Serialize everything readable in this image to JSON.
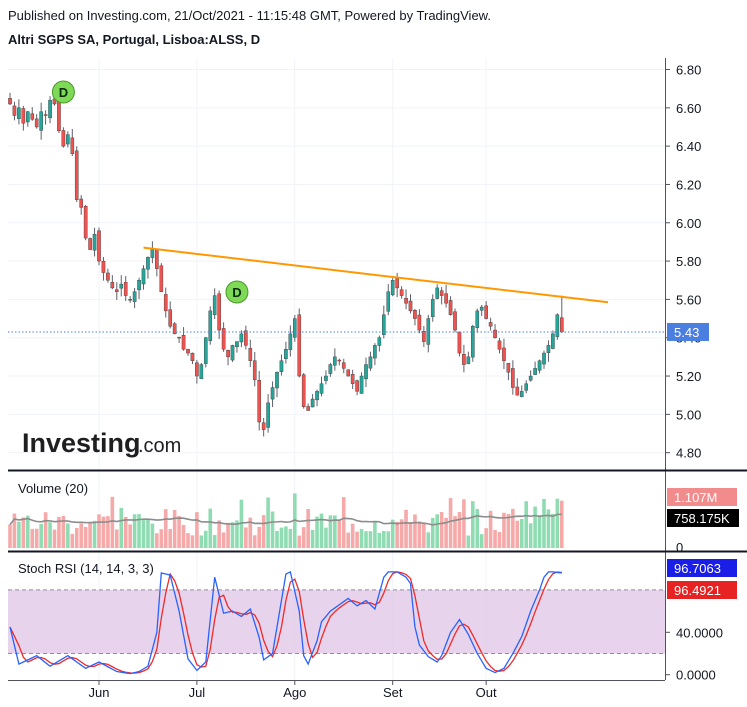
{
  "header": {
    "published": "Published on Investing.com, 21/Oct/2021 - 11:15:48 GMT, Powered by TradingView.",
    "title": "Altri SGPS SA, Portugal, Lisboa:ALSS, D"
  },
  "logo": {
    "text_bold": "Investing",
    "text_light": ".com"
  },
  "colors": {
    "up": "#26a69a",
    "down": "#ef5350",
    "vol_up": "#8fdcb3",
    "vol_down": "#f5a9a9",
    "trend": "#ff9800",
    "price_marker": "#4a7fe0",
    "k_line": "#2962ff",
    "d_line": "#ef2a2a",
    "rsi_band": "#e1c8e6",
    "div_badge": "#7ed957"
  },
  "chart_data": [
    {
      "type": "candlestick",
      "title": "Altri SGPS SA, Portugal, Lisboa:ALSS, D",
      "x_labels": [
        "Jun",
        "Jul",
        "Ago",
        "Set",
        "Out"
      ],
      "y_ticks": [
        "6.80",
        "6.60",
        "6.40",
        "6.20",
        "6.00",
        "5.80",
        "5.60",
        "5.40",
        "5.20",
        "5.00",
        "4.80"
      ],
      "ylim": [
        4.72,
        6.86
      ],
      "last_price_label": "5.43",
      "last_price": 5.43,
      "dividend_label": "D",
      "close": [
        6.62,
        6.56,
        6.6,
        6.52,
        6.58,
        6.54,
        6.5,
        6.58,
        6.56,
        6.64,
        6.62,
        6.48,
        6.4,
        6.46,
        6.36,
        6.12,
        6.08,
        5.92,
        5.86,
        5.94,
        5.8,
        5.74,
        5.7,
        5.66,
        5.64,
        5.68,
        5.62,
        5.6,
        5.64,
        5.7,
        5.76,
        5.82,
        5.86,
        5.76,
        5.64,
        5.54,
        5.46,
        5.42,
        5.4,
        5.34,
        5.32,
        5.28,
        5.2,
        5.26,
        5.4,
        5.54,
        5.62,
        5.44,
        5.34,
        5.3,
        5.36,
        5.38,
        5.42,
        5.36,
        5.28,
        5.18,
        4.96,
        4.92,
        5.06,
        5.14,
        5.22,
        5.28,
        5.34,
        5.42,
        5.5,
        5.2,
        5.04,
        5.02,
        5.08,
        5.12,
        5.16,
        5.2,
        5.26,
        5.3,
        5.28,
        5.24,
        5.2,
        5.16,
        5.12,
        5.2,
        5.26,
        5.3,
        5.36,
        5.4,
        5.52,
        5.64,
        5.7,
        5.66,
        5.62,
        5.58,
        5.54,
        5.5,
        5.44,
        5.38,
        5.5,
        5.6,
        5.66,
        5.62,
        5.58,
        5.52,
        5.44,
        5.32,
        5.26,
        5.3,
        5.46,
        5.54,
        5.56,
        5.5,
        5.46,
        5.4,
        5.34,
        5.28,
        5.22,
        5.14,
        5.1,
        5.12,
        5.16,
        5.2,
        5.24,
        5.28,
        5.32,
        5.36,
        5.42,
        5.52,
        5.43
      ],
      "dividend_days": [
        12,
        51
      ]
    },
    {
      "type": "bar",
      "title": "Volume (20)",
      "y_ticks": [
        "0"
      ],
      "labels": [
        "1.107M",
        "758.175K"
      ],
      "ylim": [
        0,
        1.38
      ]
    },
    {
      "type": "line",
      "title": "Stoch RSI (14, 14, 3, 3)",
      "y_ticks": [
        "40.0000",
        "0.0000"
      ],
      "ylim": [
        -5,
        112
      ],
      "band": [
        20,
        80
      ],
      "labels": [
        "96.7063",
        "96.4921"
      ]
    }
  ]
}
